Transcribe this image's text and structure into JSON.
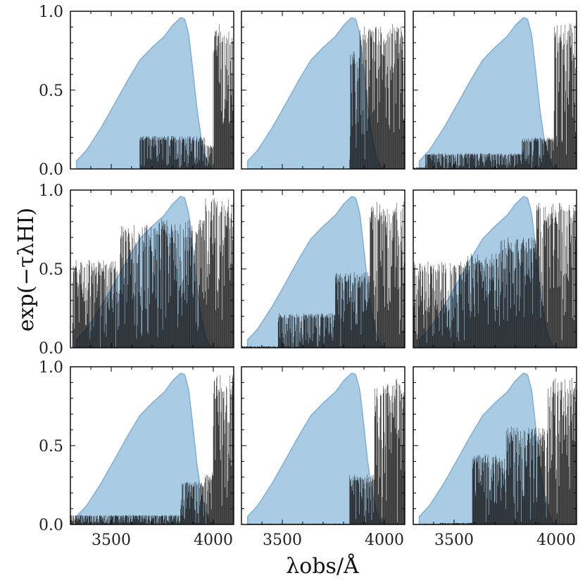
{
  "chart_data": {
    "type": "area",
    "layout": "3x3 grid of panels, shared x and y axes",
    "xlabel": "λobs/Å",
    "ylabel": "exp(−τλHI)",
    "xlim": [
      3300,
      4100
    ],
    "ylim": [
      0.0,
      1.0
    ],
    "x_ticks": [
      3500,
      4000
    ],
    "y_ticks": [
      0.0,
      0.5,
      1.0
    ],
    "x_tick_labels": [
      "3500",
      "4000"
    ],
    "y_tick_labels": [
      "0.0",
      "0.5",
      "1.0"
    ],
    "colors": {
      "filter_fill": "#a9cbe4",
      "filter_edge": "#86b1d3",
      "spectrum": "#111111"
    },
    "filter_curve": {
      "name": "",
      "x": [
        3330,
        3380,
        3450,
        3520,
        3580,
        3640,
        3700,
        3760,
        3800,
        3840,
        3860,
        3880,
        3900,
        3920,
        3940,
        3960,
        3980,
        4000
      ],
      "y": [
        0.05,
        0.12,
        0.26,
        0.42,
        0.56,
        0.69,
        0.77,
        0.84,
        0.91,
        0.96,
        0.95,
        0.85,
        0.62,
        0.38,
        0.2,
        0.08,
        0.02,
        0.0
      ]
    },
    "panels": [
      {
        "row": 0,
        "col": 0,
        "segments": [
          {
            "x_start": 3300,
            "x_end": 3640,
            "max": 0.0,
            "min": 0.0
          },
          {
            "x_start": 3640,
            "x_end": 3960,
            "max": 0.21,
            "min": 0.0
          },
          {
            "x_start": 3960,
            "x_end": 4000,
            "max": 0.15,
            "min": 0.0
          },
          {
            "x_start": 4000,
            "x_end": 4100,
            "max": 0.92,
            "min": 0.0
          }
        ]
      },
      {
        "row": 0,
        "col": 1,
        "segments": [
          {
            "x_start": 3300,
            "x_end": 3830,
            "max": 0.0,
            "min": 0.0
          },
          {
            "x_start": 3830,
            "x_end": 3880,
            "max": 0.75,
            "min": 0.0
          },
          {
            "x_start": 3880,
            "x_end": 4100,
            "max": 0.92,
            "min": 0.0
          }
        ]
      },
      {
        "row": 0,
        "col": 2,
        "segments": [
          {
            "x_start": 3300,
            "x_end": 3360,
            "max": 0.01,
            "min": 0.0
          },
          {
            "x_start": 3360,
            "x_end": 3830,
            "max": 0.1,
            "min": 0.0
          },
          {
            "x_start": 3830,
            "x_end": 3990,
            "max": 0.2,
            "min": 0.0
          },
          {
            "x_start": 3990,
            "x_end": 4100,
            "max": 0.93,
            "min": 0.0
          }
        ]
      },
      {
        "row": 1,
        "col": 0,
        "segments": [
          {
            "x_start": 3310,
            "x_end": 3540,
            "max": 0.56,
            "min": 0.0
          },
          {
            "x_start": 3540,
            "x_end": 3720,
            "max": 0.78,
            "min": 0.0
          },
          {
            "x_start": 3720,
            "x_end": 3960,
            "max": 0.82,
            "min": 0.0
          },
          {
            "x_start": 3960,
            "x_end": 4100,
            "max": 0.95,
            "min": 0.0
          }
        ]
      },
      {
        "row": 1,
        "col": 1,
        "segments": [
          {
            "x_start": 3300,
            "x_end": 3480,
            "max": 0.01,
            "min": 0.0
          },
          {
            "x_start": 3480,
            "x_end": 3760,
            "max": 0.22,
            "min": 0.0
          },
          {
            "x_start": 3760,
            "x_end": 3930,
            "max": 0.48,
            "min": 0.0
          },
          {
            "x_start": 3930,
            "x_end": 4100,
            "max": 0.93,
            "min": 0.0
          }
        ]
      },
      {
        "row": 1,
        "col": 2,
        "segments": [
          {
            "x_start": 3300,
            "x_end": 3560,
            "max": 0.55,
            "min": 0.0
          },
          {
            "x_start": 3560,
            "x_end": 3720,
            "max": 0.6,
            "min": 0.0
          },
          {
            "x_start": 3720,
            "x_end": 3900,
            "max": 0.7,
            "min": 0.0
          },
          {
            "x_start": 3900,
            "x_end": 4100,
            "max": 0.92,
            "min": 0.0
          }
        ]
      },
      {
        "row": 2,
        "col": 0,
        "segments": [
          {
            "x_start": 3300,
            "x_end": 3840,
            "max": 0.06,
            "min": 0.0
          },
          {
            "x_start": 3840,
            "x_end": 3960,
            "max": 0.27,
            "min": 0.0
          },
          {
            "x_start": 3960,
            "x_end": 4000,
            "max": 0.33,
            "min": 0.0
          },
          {
            "x_start": 4000,
            "x_end": 4100,
            "max": 0.95,
            "min": 0.0
          }
        ]
      },
      {
        "row": 2,
        "col": 1,
        "segments": [
          {
            "x_start": 3300,
            "x_end": 3830,
            "max": 0.005,
            "min": 0.0
          },
          {
            "x_start": 3830,
            "x_end": 3950,
            "max": 0.32,
            "min": 0.0
          },
          {
            "x_start": 3950,
            "x_end": 4100,
            "max": 0.93,
            "min": 0.0
          }
        ]
      },
      {
        "row": 2,
        "col": 2,
        "segments": [
          {
            "x_start": 3300,
            "x_end": 3430,
            "max": 0.005,
            "min": 0.0
          },
          {
            "x_start": 3430,
            "x_end": 3590,
            "max": 0.01,
            "min": 0.0
          },
          {
            "x_start": 3590,
            "x_end": 3750,
            "max": 0.45,
            "min": 0.0
          },
          {
            "x_start": 3750,
            "x_end": 3960,
            "max": 0.62,
            "min": 0.0
          },
          {
            "x_start": 3960,
            "x_end": 4100,
            "max": 0.93,
            "min": 0.0
          }
        ]
      }
    ]
  }
}
